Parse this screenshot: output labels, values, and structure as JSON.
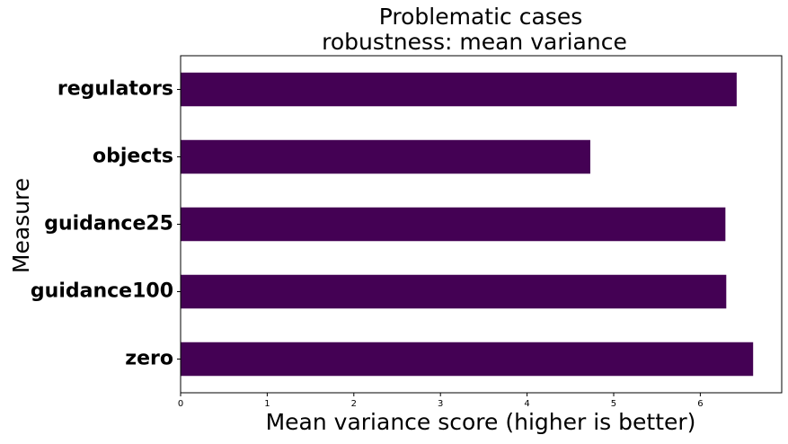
{
  "chart_data": {
    "type": "bar",
    "orientation": "horizontal",
    "title": "Problematic cases",
    "subtitle": "robustness: mean variance",
    "xlabel": "Mean variance score (higher is better)",
    "ylabel": "Measure",
    "categories": [
      "regulators",
      "objects",
      "guidance25",
      "guidance100",
      "zero"
    ],
    "values": [
      6.42,
      4.73,
      6.29,
      6.3,
      6.61
    ],
    "xlim": [
      0,
      6.94
    ],
    "xticks": [
      "0",
      "1",
      "2",
      "3",
      "4",
      "5",
      "6"
    ],
    "bar_color": "#440154",
    "grid": false,
    "legend": "none"
  }
}
